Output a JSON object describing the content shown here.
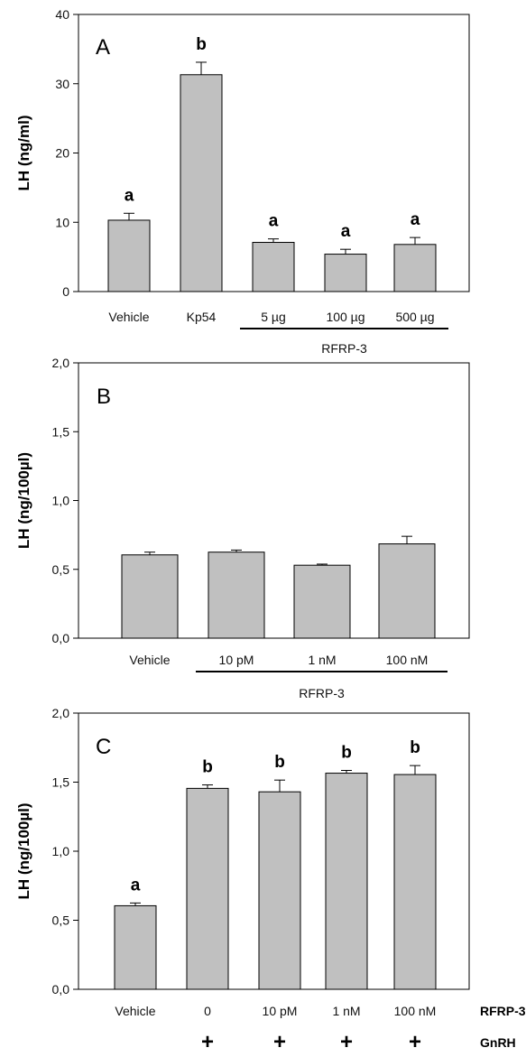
{
  "colors": {
    "bar_fill": "#c0c0c0",
    "bar_stroke": "#000000",
    "axis": "#000000"
  },
  "chart_data": [
    {
      "type": "bar",
      "panel": "A",
      "ylabel": "LH (ng/ml)",
      "ylim": [
        0,
        40
      ],
      "yticks": [
        "0",
        "10",
        "20",
        "30",
        "40"
      ],
      "categories": [
        "Vehicle",
        "Kp54",
        "5 µg",
        "100 µg",
        "500 µg"
      ],
      "values": [
        10.3,
        31.3,
        7.1,
        5.4,
        6.8
      ],
      "errors": [
        1.0,
        1.8,
        0.5,
        0.7,
        1.0
      ],
      "significance": [
        "a",
        "b",
        "a",
        "a",
        "a"
      ],
      "group_label": "RFRP-3",
      "group_span": [
        2,
        4
      ],
      "grid": false
    },
    {
      "type": "bar",
      "panel": "B",
      "ylabel": "LH (ng/100µl)",
      "ylim": [
        0,
        2.0
      ],
      "yticks": [
        "0,0",
        "0,5",
        "1,0",
        "1,5",
        "2,0"
      ],
      "categories": [
        "Vehicle",
        "10 pM",
        "1 nM",
        "100 nM"
      ],
      "values": [
        0.605,
        0.625,
        0.53,
        0.685
      ],
      "errors": [
        0.02,
        0.015,
        0.008,
        0.055
      ],
      "significance": [],
      "group_label": "RFRP-3",
      "group_span": [
        1,
        3
      ],
      "grid": false
    },
    {
      "type": "bar",
      "panel": "C",
      "ylabel": "LH (ng/100µl)",
      "ylim": [
        0,
        2.0
      ],
      "yticks": [
        "0,0",
        "0,5",
        "1,0",
        "1,5",
        "2,0"
      ],
      "categories": [
        "Vehicle",
        "0",
        "10 pM",
        "1 nM",
        "100 nM"
      ],
      "values": [
        0.605,
        1.455,
        1.43,
        1.565,
        1.555
      ],
      "errors": [
        0.02,
        0.025,
        0.085,
        0.02,
        0.065
      ],
      "significance": [
        "a",
        "b",
        "b",
        "b",
        "b"
      ],
      "row_titles": [
        "RFRP-3",
        "GnRH"
      ],
      "gnrh_marks": [
        "",
        "+",
        "+",
        "+",
        "+"
      ],
      "grid": false
    }
  ]
}
